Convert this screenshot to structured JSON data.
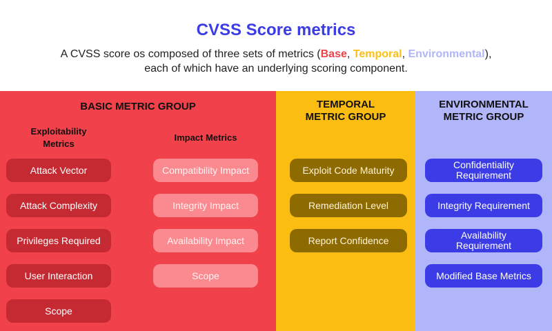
{
  "header": {
    "title": "CVSS Score metrics",
    "subtitle_line1_prefix": "A CVSS score os composed of three sets of metrics (",
    "kw_base": "Base",
    "sep1": ", ",
    "kw_temporal": "Temporal",
    "sep2": ", ",
    "kw_environmental": "Environmental",
    "subtitle_line1_suffix": "),",
    "subtitle_line2": "each of which have an underlying scoring component."
  },
  "basic": {
    "title": "BASIC METRIC GROUP",
    "exploitability_title_1": "Exploitability",
    "exploitability_title_2": "Metrics",
    "impact_title": "Impact Metrics",
    "exploitability": [
      "Attack Vector",
      "Attack Complexity",
      "Privileges Required",
      "User Interaction",
      "Scope"
    ],
    "impact": [
      "Compatibility Impact",
      "Integrity Impact",
      "Availability Impact",
      "Scope"
    ]
  },
  "temporal": {
    "title_1": "TEMPORAL",
    "title_2": "METRIC GROUP",
    "items": [
      "Exploit Code Maturity",
      "Remediation Level",
      "Report Confidence"
    ]
  },
  "environmental": {
    "title_1": "ENVIRONMENTAL",
    "title_2": "METRIC GROUP",
    "items_1": [
      "Confidentiality",
      "",
      "Availability",
      ""
    ],
    "items_2": [
      "Requirement",
      "Integrity Requirement",
      "Requirement",
      "Modified Base Metrics"
    ]
  },
  "colors": {
    "title": "#3b3ce6",
    "base": "#f1414a",
    "temporal": "#fcbd12",
    "environmental": "#b1b5fa"
  }
}
